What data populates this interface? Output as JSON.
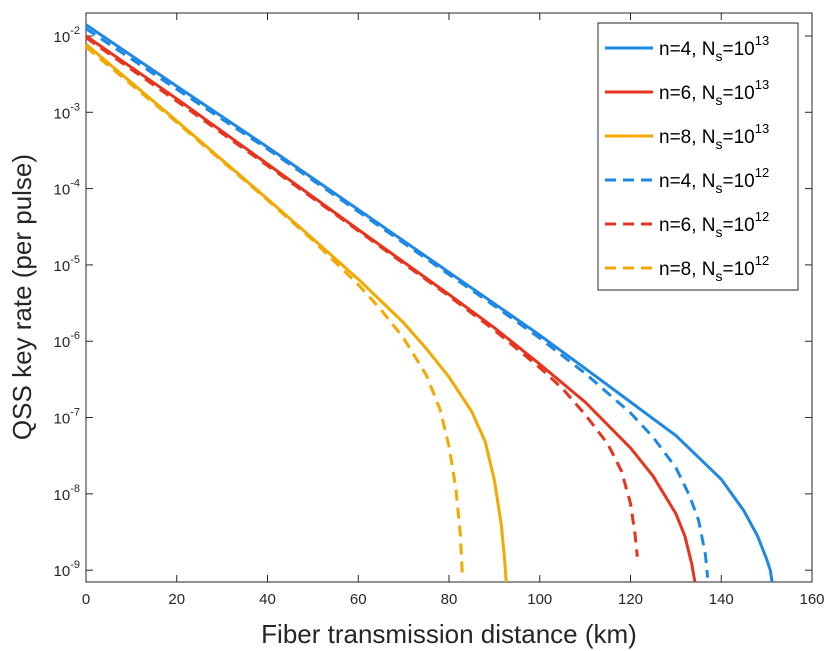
{
  "chart_data": {
    "type": "line",
    "title": "",
    "xlabel": "Fiber transmission distance (km)",
    "ylabel": "QSS key rate (per pulse)",
    "xlim": [
      0,
      160
    ],
    "ylim": [
      7e-10,
      0.02
    ],
    "yscale": "log",
    "grid": false,
    "legend_position": "top-right",
    "x_ticks": [
      "0",
      "20",
      "40",
      "60",
      "80",
      "100",
      "120",
      "140",
      "160"
    ],
    "y_ticks": [
      {
        "base": "10",
        "exp": "-9"
      },
      {
        "base": "10",
        "exp": "-8"
      },
      {
        "base": "10",
        "exp": "-7"
      },
      {
        "base": "10",
        "exp": "-6"
      },
      {
        "base": "10",
        "exp": "-5"
      },
      {
        "base": "10",
        "exp": "-4"
      },
      {
        "base": "10",
        "exp": "-3"
      },
      {
        "base": "10",
        "exp": "-2"
      }
    ],
    "series": [
      {
        "name": "n=4, Ns=10^13",
        "label_main": "n=4, N",
        "label_sub": "s",
        "label_mid": "=10",
        "label_exp": "13",
        "color": "#1E88E5",
        "dash": "solid",
        "x": [
          0,
          20,
          40,
          60,
          80,
          90,
          100,
          110,
          120,
          130,
          140,
          145,
          148,
          150,
          150.8,
          151.2
        ],
        "y": [
          0.014,
          0.0022,
          0.00035,
          5.3e-05,
          8e-06,
          3.1e-06,
          1.2e-06,
          4.4e-07,
          1.6e-07,
          5.8e-08,
          1.55e-08,
          6e-09,
          2.8e-09,
          1.4e-09,
          1e-09,
          7e-10
        ]
      },
      {
        "name": "n=6, Ns=10^13",
        "label_main": "n=6, N",
        "label_sub": "s",
        "label_mid": "=10",
        "label_exp": "13",
        "color": "#E8341C",
        "dash": "solid",
        "x": [
          0,
          20,
          40,
          60,
          80,
          90,
          100,
          110,
          120,
          125,
          130,
          132,
          133.5,
          134.2
        ],
        "y": [
          0.01,
          0.0015,
          0.00021,
          2.9e-05,
          4.1e-06,
          1.5e-06,
          5e-07,
          1.6e-07,
          4e-08,
          1.7e-08,
          5.5e-09,
          2.8e-09,
          1.2e-09,
          7e-10
        ]
      },
      {
        "name": "n=8, Ns=10^13",
        "label_main": "n=8, N",
        "label_sub": "s",
        "label_mid": "=10",
        "label_exp": "13",
        "color": "#F2A900",
        "dash": "solid",
        "x": [
          0,
          20,
          40,
          50,
          60,
          70,
          75,
          80,
          85,
          88,
          90,
          91.5,
          92.3,
          92.6
        ],
        "y": [
          0.0078,
          0.00077,
          7.3e-05,
          2.2e-05,
          6.5e-06,
          1.75e-06,
          8e-07,
          3.4e-07,
          1.2e-07,
          4.8e-08,
          1.5e-08,
          4e-09,
          1.3e-09,
          7e-10
        ]
      },
      {
        "name": "n=4, Ns=10^12",
        "label_main": "n=4, N",
        "label_sub": "s",
        "label_mid": "=10",
        "label_exp": "12",
        "color": "#1E88E5",
        "dash": "dashed",
        "x": [
          0,
          20,
          40,
          60,
          80,
          90,
          100,
          110,
          120,
          125,
          130,
          133,
          135,
          136.5,
          137
        ],
        "y": [
          0.0125,
          0.002,
          0.00033,
          5e-05,
          7.5e-06,
          2.9e-06,
          1.1e-06,
          3.8e-07,
          1.15e-07,
          5.5e-08,
          2.2e-08,
          9.5e-09,
          4.5e-09,
          1.6e-09,
          8e-10
        ]
      },
      {
        "name": "n=6, Ns=10^12",
        "label_main": "n=6, N",
        "label_sub": "s",
        "label_mid": "=10",
        "label_exp": "12",
        "color": "#E8341C",
        "dash": "dashed",
        "x": [
          0,
          20,
          40,
          60,
          80,
          90,
          100,
          105,
          110,
          115,
          118,
          120,
          121,
          121.5
        ],
        "y": [
          0.0095,
          0.0014,
          0.0002,
          2.8e-05,
          3.9e-06,
          1.4e-06,
          4.5e-07,
          2.4e-07,
          1.1e-07,
          4.5e-08,
          2e-08,
          7.5e-09,
          3e-09,
          1.5e-09
        ]
      },
      {
        "name": "n=8, Ns=10^12",
        "label_main": "n=8, N",
        "label_sub": "s",
        "label_mid": "=10",
        "label_exp": "12",
        "color": "#F2A900",
        "dash": "dashed",
        "x": [
          0,
          20,
          40,
          50,
          60,
          65,
          70,
          75,
          78,
          80,
          81.5,
          82.5,
          83
        ],
        "y": [
          0.0072,
          0.00074,
          7.1e-05,
          2.1e-05,
          5.5e-06,
          2.6e-06,
          1.1e-06,
          3.6e-07,
          1.3e-07,
          4.2e-08,
          1.2e-08,
          3e-09,
          7.5e-10
        ]
      }
    ]
  }
}
